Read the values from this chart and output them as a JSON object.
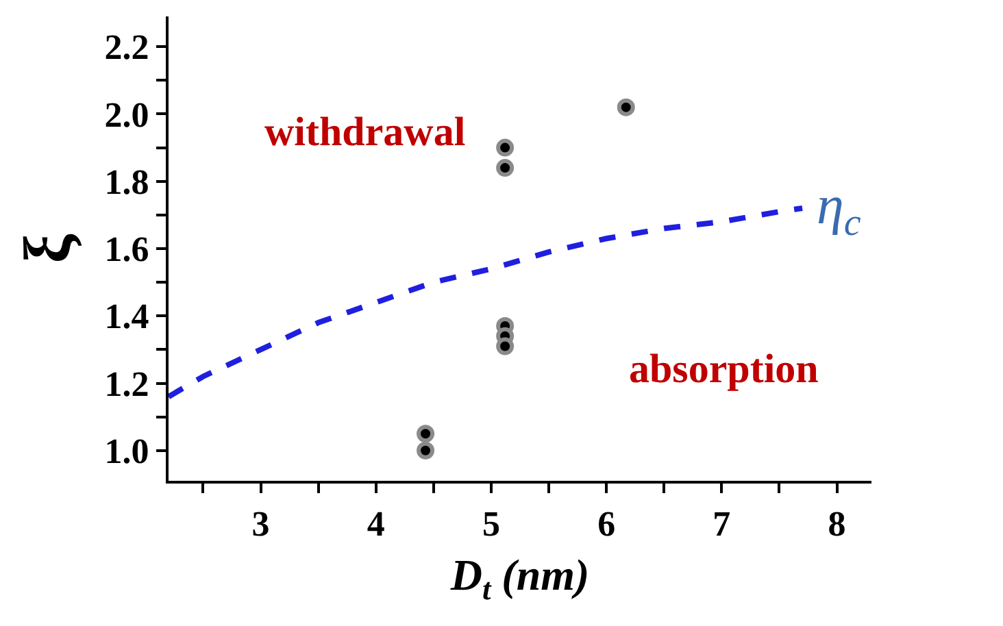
{
  "chart_data": {
    "type": "scatter",
    "xlabel": "D$_{t}$ (nm)",
    "ylabel": "ξ",
    "xlim": [
      2.2,
      8.3
    ],
    "xticks": [
      {
        "value": 2.5,
        "label": null
      },
      3,
      {
        "value": 3.5,
        "label": null
      },
      4,
      {
        "value": 4.5,
        "label": null
      },
      5,
      {
        "value": 5.5,
        "label": null
      },
      6,
      {
        "value": 6.5,
        "label": null
      },
      7,
      {
        "value": 7.5,
        "label": null
      },
      8
    ],
    "ylim": [
      0.91,
      2.29
    ],
    "yticks": [
      {
        "value": 1,
        "label": "1.0"
      },
      {
        "value": 1.1,
        "label": null
      },
      1.2,
      {
        "value": 1.3,
        "label": null
      },
      1.4,
      {
        "value": 1.5,
        "label": null
      },
      1.6,
      {
        "value": 1.7,
        "label": null
      },
      1.8,
      {
        "value": 1.9,
        "label": null
      },
      {
        "value": 2,
        "label": "2.0"
      },
      {
        "value": 2.1,
        "label": null
      },
      2.2
    ],
    "grid": false,
    "legend": false,
    "marker": "circle",
    "series": [
      {
        "color": "#000000",
        "x": [
          4.43,
          4.43,
          5.12,
          5.12,
          5.12,
          5.12,
          5.12,
          6.17
        ],
        "values": [
          1.05,
          1.0,
          1.9,
          1.84,
          1.37,
          1.34,
          1.31,
          2.02
        ]
      },
      {
        "type": "line",
        "name": "η$_{c}$",
        "color": "#1f1fe0",
        "line_style": "dashed",
        "marker": "none",
        "x": [
          2.2,
          2.5,
          3,
          3.5,
          4,
          4.5,
          5,
          5.5,
          6,
          6.5,
          7,
          7.5,
          7.7
        ],
        "values": [
          1.16,
          1.22,
          1.3,
          1.38,
          1.44,
          1.5,
          1.54,
          1.59,
          1.63,
          1.66,
          1.68,
          1.71,
          1.72
        ]
      }
    ],
    "annotations": [
      "withdrawal",
      "absorption"
    ]
  }
}
